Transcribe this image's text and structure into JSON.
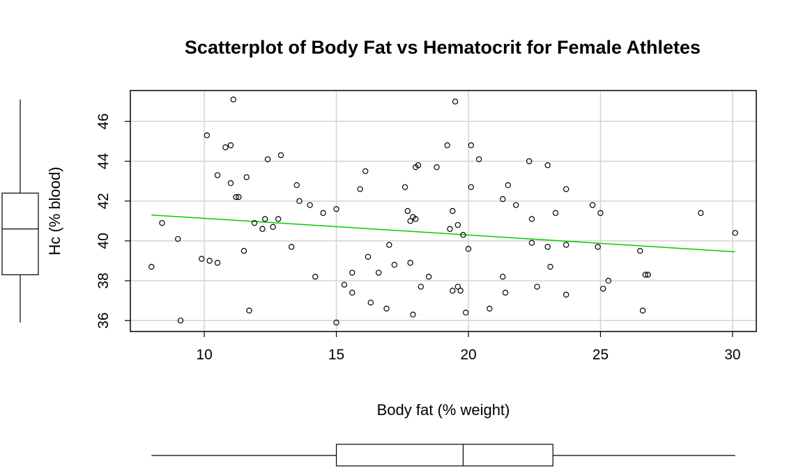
{
  "chart_data": {
    "type": "scatter",
    "title": "Scatterplot of Body Fat vs Hematocrit for Female Athletes",
    "xlabel": "Body fat (% weight)",
    "ylabel": "Hc (% blood)",
    "xlim": [
      7.2,
      30.9
    ],
    "ylim": [
      35.45,
      47.55
    ],
    "xticks": [
      10,
      15,
      20,
      25,
      30
    ],
    "yticks": [
      36,
      38,
      40,
      42,
      44,
      46
    ],
    "grid": true,
    "point_color": "#000000",
    "line_color": "#00cd00",
    "regression_line": {
      "x": [
        8.0,
        30.1
      ],
      "y": [
        41.3,
        39.45
      ]
    },
    "x_boxplot": {
      "min": 8.0,
      "q1": 15.0,
      "median": 19.8,
      "q3": 23.2,
      "max": 30.1
    },
    "y_boxplot": {
      "min": 35.9,
      "q1": 38.3,
      "median": 40.6,
      "q3": 42.4,
      "max": 47.1
    },
    "points": [
      {
        "x": 8.0,
        "y": 38.7
      },
      {
        "x": 8.4,
        "y": 40.9
      },
      {
        "x": 9.0,
        "y": 40.1
      },
      {
        "x": 9.1,
        "y": 36.0
      },
      {
        "x": 9.9,
        "y": 39.1
      },
      {
        "x": 10.1,
        "y": 45.3
      },
      {
        "x": 10.2,
        "y": 39.0
      },
      {
        "x": 10.5,
        "y": 38.9
      },
      {
        "x": 10.5,
        "y": 43.3
      },
      {
        "x": 10.8,
        "y": 44.7
      },
      {
        "x": 11.0,
        "y": 44.8
      },
      {
        "x": 11.0,
        "y": 42.9
      },
      {
        "x": 11.1,
        "y": 47.1
      },
      {
        "x": 11.2,
        "y": 42.2
      },
      {
        "x": 11.3,
        "y": 42.2
      },
      {
        "x": 11.5,
        "y": 39.5
      },
      {
        "x": 11.6,
        "y": 43.2
      },
      {
        "x": 11.7,
        "y": 36.5
      },
      {
        "x": 11.9,
        "y": 40.9
      },
      {
        "x": 12.2,
        "y": 40.6
      },
      {
        "x": 12.3,
        "y": 41.1
      },
      {
        "x": 12.4,
        "y": 44.1
      },
      {
        "x": 12.6,
        "y": 40.7
      },
      {
        "x": 12.8,
        "y": 41.1
      },
      {
        "x": 12.9,
        "y": 44.3
      },
      {
        "x": 13.3,
        "y": 39.7
      },
      {
        "x": 13.5,
        "y": 42.8
      },
      {
        "x": 13.6,
        "y": 42.0
      },
      {
        "x": 14.0,
        "y": 41.8
      },
      {
        "x": 14.2,
        "y": 38.2
      },
      {
        "x": 14.5,
        "y": 41.4
      },
      {
        "x": 15.0,
        "y": 35.9
      },
      {
        "x": 15.0,
        "y": 41.6
      },
      {
        "x": 15.3,
        "y": 37.8
      },
      {
        "x": 15.6,
        "y": 38.4
      },
      {
        "x": 15.6,
        "y": 37.4
      },
      {
        "x": 15.9,
        "y": 42.6
      },
      {
        "x": 16.1,
        "y": 43.5
      },
      {
        "x": 16.2,
        "y": 39.2
      },
      {
        "x": 16.3,
        "y": 36.9
      },
      {
        "x": 16.6,
        "y": 38.4
      },
      {
        "x": 16.9,
        "y": 36.6
      },
      {
        "x": 17.0,
        "y": 39.8
      },
      {
        "x": 17.2,
        "y": 38.8
      },
      {
        "x": 17.6,
        "y": 42.7
      },
      {
        "x": 17.7,
        "y": 41.5
      },
      {
        "x": 17.8,
        "y": 41.0
      },
      {
        "x": 17.8,
        "y": 38.9
      },
      {
        "x": 17.9,
        "y": 41.2
      },
      {
        "x": 17.9,
        "y": 36.3
      },
      {
        "x": 18.0,
        "y": 41.1
      },
      {
        "x": 18.0,
        "y": 43.7
      },
      {
        "x": 18.1,
        "y": 43.8
      },
      {
        "x": 18.2,
        "y": 37.7
      },
      {
        "x": 18.5,
        "y": 38.2
      },
      {
        "x": 18.8,
        "y": 43.7
      },
      {
        "x": 19.2,
        "y": 44.8
      },
      {
        "x": 19.3,
        "y": 40.6
      },
      {
        "x": 19.4,
        "y": 41.5
      },
      {
        "x": 19.4,
        "y": 37.5
      },
      {
        "x": 19.5,
        "y": 47.0
      },
      {
        "x": 19.6,
        "y": 37.7
      },
      {
        "x": 19.6,
        "y": 40.8
      },
      {
        "x": 19.7,
        "y": 37.5
      },
      {
        "x": 19.8,
        "y": 40.3
      },
      {
        "x": 19.9,
        "y": 36.4
      },
      {
        "x": 20.0,
        "y": 39.6
      },
      {
        "x": 20.1,
        "y": 44.8
      },
      {
        "x": 20.1,
        "y": 42.7
      },
      {
        "x": 20.4,
        "y": 44.1
      },
      {
        "x": 20.8,
        "y": 36.6
      },
      {
        "x": 21.3,
        "y": 42.1
      },
      {
        "x": 21.3,
        "y": 38.2
      },
      {
        "x": 21.4,
        "y": 37.4
      },
      {
        "x": 21.5,
        "y": 42.8
      },
      {
        "x": 21.8,
        "y": 41.8
      },
      {
        "x": 22.3,
        "y": 44.0
      },
      {
        "x": 22.4,
        "y": 41.1
      },
      {
        "x": 22.4,
        "y": 39.9
      },
      {
        "x": 22.6,
        "y": 37.7
      },
      {
        "x": 23.0,
        "y": 39.7
      },
      {
        "x": 23.0,
        "y": 43.8
      },
      {
        "x": 23.1,
        "y": 38.7
      },
      {
        "x": 23.3,
        "y": 41.4
      },
      {
        "x": 23.7,
        "y": 42.6
      },
      {
        "x": 23.7,
        "y": 39.8
      },
      {
        "x": 23.7,
        "y": 37.3
      },
      {
        "x": 24.7,
        "y": 41.8
      },
      {
        "x": 24.9,
        "y": 39.7
      },
      {
        "x": 25.0,
        "y": 41.4
      },
      {
        "x": 25.1,
        "y": 37.6
      },
      {
        "x": 25.3,
        "y": 38.0
      },
      {
        "x": 26.5,
        "y": 39.5
      },
      {
        "x": 26.6,
        "y": 36.5
      },
      {
        "x": 26.7,
        "y": 38.3
      },
      {
        "x": 26.8,
        "y": 38.3
      },
      {
        "x": 28.8,
        "y": 41.4
      },
      {
        "x": 30.1,
        "y": 40.4
      }
    ]
  }
}
